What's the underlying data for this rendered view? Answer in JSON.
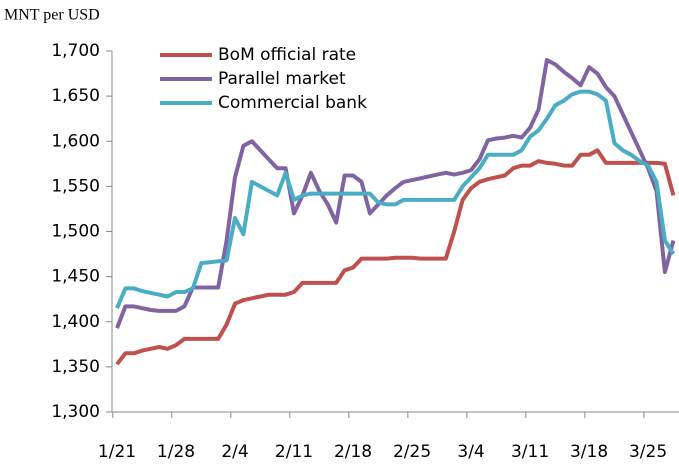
{
  "chart_data": {
    "type": "line",
    "y_label": "MNT per USD",
    "categories": [
      "1/21",
      null,
      null,
      null,
      null,
      null,
      null,
      "1/28",
      null,
      null,
      null,
      null,
      null,
      null,
      "2/4",
      null,
      null,
      null,
      null,
      null,
      null,
      "2/11",
      null,
      null,
      null,
      null,
      null,
      null,
      "2/18",
      null,
      null,
      null,
      null,
      null,
      null,
      "2/25",
      null,
      null,
      null,
      null,
      null,
      null,
      "3/4",
      null,
      null,
      null,
      null,
      null,
      null,
      "3/11",
      null,
      null,
      null,
      null,
      null,
      null,
      "3/18",
      null,
      null,
      null,
      null,
      null,
      null,
      "3/25",
      null,
      null,
      null
    ],
    "series": [
      {
        "name": "BoM official rate",
        "color": "#c0504d",
        "values": [
          1353,
          1365,
          1365,
          1368,
          1370,
          1372,
          1370,
          1374,
          1381,
          1381,
          1381,
          1381,
          1381,
          1397,
          1420,
          1424,
          1426,
          1428,
          1430,
          1430,
          1430,
          1433,
          1443,
          1443,
          1443,
          1443,
          1443,
          1457,
          1460,
          1470,
          1470,
          1470,
          1470,
          1471,
          1471,
          1471,
          1470,
          1470,
          1470,
          1470,
          1500,
          1535,
          1548,
          1555,
          1558,
          1560,
          1562,
          1570,
          1573,
          1573,
          1578,
          1576,
          1575,
          1573,
          1573,
          1585,
          1585,
          1590,
          1576,
          1576,
          1576,
          1576,
          1576,
          1576,
          1576,
          1575,
          1540
        ]
      },
      {
        "name": "Parallel market",
        "color": "#8064a2",
        "values": [
          1393,
          1417,
          1417,
          1415,
          1413,
          1412,
          1412,
          1412,
          1417,
          1438,
          1438,
          1438,
          1438,
          1490,
          1560,
          1595,
          1600,
          1590,
          1580,
          1570,
          1570,
          1520,
          1540,
          1565,
          1545,
          1530,
          1510,
          1562,
          1562,
          1555,
          1520,
          1530,
          1540,
          1548,
          1555,
          1557,
          1559,
          1561,
          1563,
          1565,
          1563,
          1565,
          1568,
          1580,
          1601,
          1603,
          1604,
          1606,
          1604,
          1615,
          1635,
          1690,
          1685,
          1677,
          1670,
          1662,
          1682,
          1675,
          1660,
          1650,
          1630,
          1610,
          1590,
          1570,
          1545,
          1455,
          1490
        ]
      },
      {
        "name": "Commercial bank",
        "color": "#4bacc6",
        "values": [
          1415,
          1437,
          1437,
          1434,
          1432,
          1430,
          1428,
          1433,
          1433,
          1437,
          1465,
          1466,
          1467,
          1468,
          1515,
          1497,
          1555,
          1550,
          1545,
          1540,
          1565,
          1535,
          1540,
          1542,
          1542,
          1542,
          1542,
          1542,
          1542,
          1542,
          1542,
          1532,
          1530,
          1530,
          1535,
          1535,
          1535,
          1535,
          1535,
          1535,
          1535,
          1550,
          1560,
          1570,
          1585,
          1585,
          1585,
          1585,
          1590,
          1605,
          1612,
          1625,
          1640,
          1645,
          1652,
          1655,
          1655,
          1652,
          1645,
          1598,
          1590,
          1585,
          1578,
          1573,
          1555,
          1490,
          1475
        ]
      }
    ],
    "ylim": [
      1300,
      1700
    ],
    "yticks": [
      {
        "value": 1300,
        "label": "1,300"
      },
      {
        "value": 1350,
        "label": "1,350"
      },
      {
        "value": 1400,
        "label": "1,400"
      },
      {
        "value": 1450,
        "label": "1,450"
      },
      {
        "value": 1500,
        "label": "1,500"
      },
      {
        "value": 1550,
        "label": "1,550"
      },
      {
        "value": 1600,
        "label": "1,600"
      },
      {
        "value": 1650,
        "label": "1,650"
      },
      {
        "value": 1700,
        "label": "1,700"
      }
    ],
    "legend": "top-left"
  }
}
